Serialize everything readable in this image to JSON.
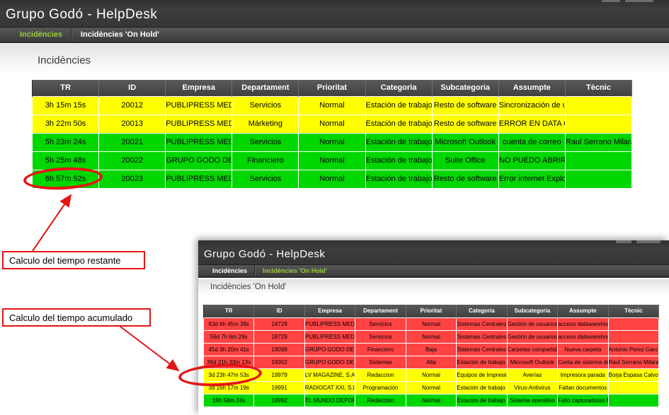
{
  "colors": {
    "row_yellow": "#ffff00",
    "row_green": "#00d600",
    "row_red": "#ff4343",
    "accent_green": "#9aca3c",
    "annotation_red": "#e51515",
    "header_bg": "#363636"
  },
  "window_main": {
    "title": "Grupo Godó - HelpDesk",
    "nav": [
      {
        "label": "Incidències",
        "active": true
      },
      {
        "label": "Incidències 'On Hold'",
        "active": false
      }
    ],
    "heading": "Incidències",
    "table": {
      "columns": [
        "TR",
        "ID",
        "Empresa",
        "Departament",
        "Prioritat",
        "Categoria",
        "Subcategoria",
        "Assumpte",
        "Tècnic"
      ],
      "rows": [
        {
          "color": "yellow",
          "cells": [
            "3h 15m 15s",
            "20012",
            "PUBLIPRESS MEDIA, S",
            "Servicios",
            "Normal",
            "Estación de trabajo So",
            "Resto de software",
            "Sincronización de una",
            ""
          ]
        },
        {
          "color": "yellow",
          "cells": [
            "3h 22m 50s",
            "20013",
            "PUBLIPRESS MEDIA, S",
            "Márketing",
            "Normal",
            "Estación de trabajo So",
            "Resto de software",
            "ERROR EN DATA CUA",
            ""
          ]
        },
        {
          "color": "green",
          "cells": [
            "5h 23m 24s",
            "20021",
            "PUBLIPRESS MEDIA, S",
            "Servicios",
            "Normal",
            "Estación de trabajo So",
            "Microsoft Outlook",
            "cuenta de correo",
            "Raul Serrano Milara"
          ]
        },
        {
          "color": "green",
          "cells": [
            "5h 25m 48s",
            "20022",
            "GRUPO GODO DE CO",
            "Financiero",
            "Normal",
            "Estación de trabajo So",
            "Suite Office",
            "NO PUEDO ABRIR AR",
            ""
          ]
        },
        {
          "color": "green",
          "cells": [
            "6h 57m 52s",
            "20023",
            "PUBLIPRESS MEDIA, S",
            "Servicios",
            "Normal",
            "Estación de trabajo So",
            "Resto de software",
            "Error internet Explorer",
            ""
          ]
        }
      ]
    }
  },
  "window_onhold": {
    "title": "Grupo Godó - HelpDesk",
    "nav": [
      {
        "label": "Incidències",
        "active": false
      },
      {
        "label": "Incidències 'On Hold'",
        "active": true
      }
    ],
    "heading": "Incidències 'On Hold'",
    "table": {
      "columns": [
        "TR",
        "ID",
        "Empresa",
        "Departament",
        "Prioritat",
        "Categoria",
        "Subcategoria",
        "Assumpte",
        "Tècnic"
      ],
      "rows": [
        {
          "color": "red",
          "cells": [
            "63d 6h 45m 39s",
            "18729",
            "PUBLIPRESS MEDIA, S",
            "Servicios",
            "Normal",
            "Sistemas Centrales",
            "Gestión de usuarios",
            "acceso datawarehous",
            ""
          ]
        },
        {
          "color": "red",
          "cells": [
            "56d 7h 6m 29s",
            "18729",
            "PUBLIPRESS MEDIA, S",
            "Servicios",
            "Normal",
            "Sistemas Centrales",
            "Gestión de usuarios",
            "acceso datawarehous",
            ""
          ]
        },
        {
          "color": "red",
          "cells": [
            "45d 3h 20m 41s",
            "19098",
            "GRUPO GODO DE CO",
            "Financiero",
            "Baja",
            "Sistemas Centrales",
            "Carpetas compartidas",
            "Nueva carpeta",
            "Antonio Perez Garcia"
          ]
        },
        {
          "color": "red",
          "cells": [
            "39d 21h 33m 13s",
            "19302",
            "GRUPO GODO DE CO",
            "Sistemas",
            "Alta",
            "Estación de trabajo So",
            "Microsoft Outlook",
            "Conta de sistema de F",
            "Raul Serrano Milara"
          ]
        },
        {
          "color": "yellow",
          "cells": [
            "3d 23h 47m 53s",
            "19979",
            "LV MAGAZINE, S.A.",
            "Redaccion",
            "Normal",
            "Equipos de Impresión",
            "Averías",
            "Impresora parada",
            "Borja Espasa Calvo"
          ]
        },
        {
          "color": "yellow",
          "cells": [
            "3d 16h 17m 19s",
            "19991",
            "RADIOCAT XXI, S.L.",
            "Programación",
            "Normal",
            "Estación de trabajo So",
            "Virus-Antivirus",
            "Faltan documentos",
            ""
          ]
        },
        {
          "color": "green",
          "cells": [
            "19h 58m 24s",
            "19992",
            "EL MUNDO DEPORTI",
            "Redaccion",
            "Normal",
            "Estación de trabajo So",
            "Sistema operativo",
            "Fallo capturadoras MD",
            ""
          ]
        }
      ]
    }
  },
  "annotations": {
    "restante_label": "Calculo del tiempo restante",
    "acumulado_label": "Calculo del tiempo acumulado"
  }
}
